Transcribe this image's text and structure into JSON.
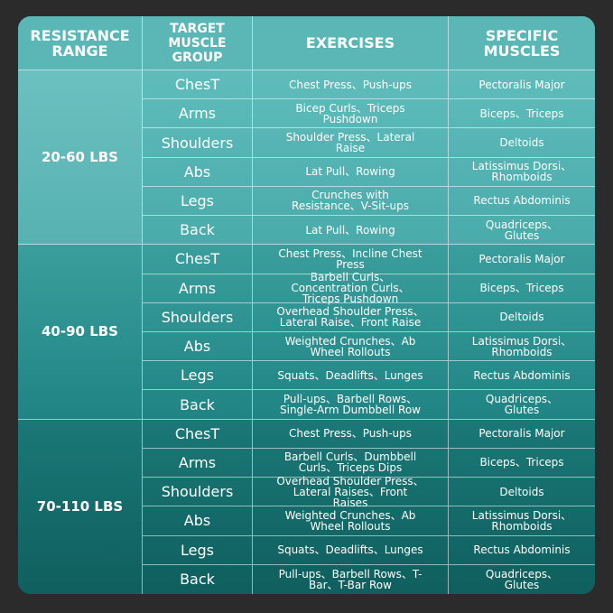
{
  "header": [
    "RESISTANCE RANGE",
    "TARGET MUSCLE GROUP",
    "EXERCISES",
    "SPECIFIC MUSCLES"
  ],
  "groups": [
    {
      "range": "20-60 LBS",
      "rows": [
        [
          "ChesT",
          "Chest Press、Push-ups",
          "Pectoralis Major"
        ],
        [
          "Arms",
          "Bicep Curls、Triceps Pushdown",
          "Biceps、Triceps"
        ],
        [
          "Shoulders",
          "Shoulder Press、Lateral Raise",
          "Deltoids"
        ],
        [
          "Abs",
          "Lat Pull、Rowing",
          "Latissimus Dorsi、Rhomboids"
        ],
        [
          "Legs",
          "Crunches with Resistance、V-Sit-ups",
          "Rectus Abdominis"
        ],
        [
          "Back",
          "Lat Pull、Rowing",
          "Quadriceps、Glutes"
        ]
      ]
    },
    {
      "range": "40-90 LBS",
      "rows": [
        [
          "ChesT",
          "Chest Press、Incline Chest Press",
          "Pectoralis Major"
        ],
        [
          "Arms",
          "Barbell Curls、Concentration Curls、Triceps Pushdown",
          "Biceps、Triceps"
        ],
        [
          "Shoulders",
          "Overhead Shoulder Press、Lateral Raise、Front Raise",
          "Deltoids"
        ],
        [
          "Abs",
          "Weighted Crunches、Ab Wheel Rollouts",
          "Latissimus Dorsi、Rhomboids"
        ],
        [
          "Legs",
          "Squats、Deadlifts、Lunges",
          "Rectus Abdominis"
        ],
        [
          "Back",
          "Pull-ups、Barbell Rows、Single-Arm Dumbbell Row",
          "Quadriceps、Glutes"
        ]
      ]
    },
    {
      "range": "70-110 LBS",
      "rows": [
        [
          "ChesT",
          "Chest Press、Push-ups",
          "Pectoralis Major"
        ],
        [
          "Arms",
          "Barbell Curls、Dumbbell Curls、Triceps Dips",
          "Biceps、Triceps"
        ],
        [
          "Shoulders",
          "Overhead Shoulder Press、Lateral Raises、Front Raises",
          "Deltoids"
        ],
        [
          "Abs",
          "Weighted Crunches、Ab Wheel Rollouts",
          "Latissimus Dorsi、Rhomboids"
        ],
        [
          "Legs",
          "Squats、Deadlifts、Lunges",
          "Rectus Abdominis"
        ],
        [
          "Back",
          "Pull-ups、Barbell Rows、T-Bar、T-Bar Row",
          "Quadriceps、Glutes"
        ]
      ]
    }
  ]
}
